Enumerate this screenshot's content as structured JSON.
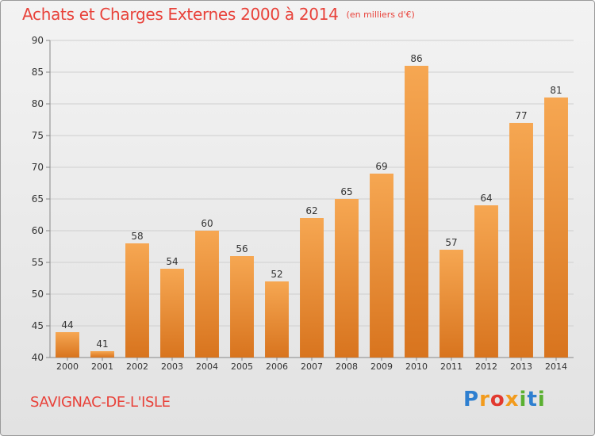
{
  "header": {
    "title": "Achats et Charges Externes 2000 à 2014",
    "unit": "(en milliers d'€)"
  },
  "footer": {
    "town": "SAVIGNAC-DE-L'ISLE",
    "brand": "Proxiti"
  },
  "colors": {
    "accent": "#e8423a",
    "bar_top": "#f6a752",
    "bar_bottom": "#d8741e",
    "grid": "#cfcfcf",
    "text": "#333333"
  },
  "chart_data": {
    "type": "bar",
    "title": "Achats et Charges Externes 2000 à 2014",
    "subtitle": "(en milliers d'€)",
    "xlabel": "",
    "ylabel": "",
    "categories": [
      "2000",
      "2001",
      "2002",
      "2003",
      "2004",
      "2005",
      "2006",
      "2007",
      "2008",
      "2009",
      "2010",
      "2011",
      "2012",
      "2013",
      "2014"
    ],
    "values": [
      44,
      41,
      58,
      54,
      60,
      56,
      52,
      62,
      65,
      69,
      86,
      57,
      64,
      77,
      81
    ],
    "ylim": [
      40,
      90
    ],
    "yticks": [
      40,
      45,
      50,
      55,
      60,
      65,
      70,
      75,
      80,
      85,
      90
    ],
    "grid": true,
    "data_labels": true,
    "legend": "none"
  }
}
